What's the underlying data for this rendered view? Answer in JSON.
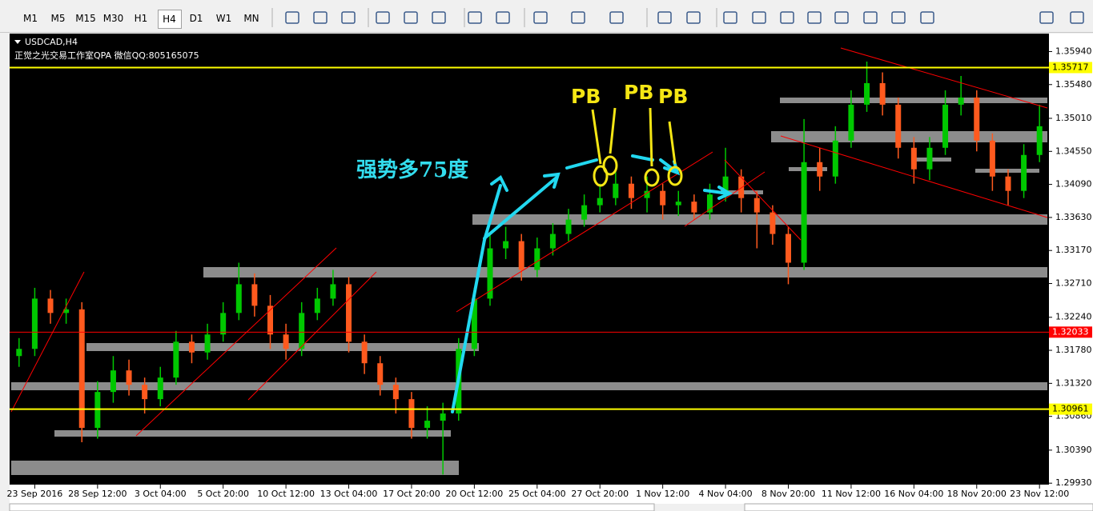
{
  "toolbar": {
    "timeframes": [
      "M1",
      "M5",
      "M15",
      "M30",
      "H1",
      "H4",
      "D1",
      "W1",
      "MN"
    ]
  },
  "chart_data": {
    "type": "candlestick",
    "title": "USDCAD,H4",
    "subtitle": "正觉之光交易工作室QPA 微信QQ:805165075",
    "annotations": [
      "强势多75度",
      "PB",
      "PB",
      "PB"
    ],
    "categories": [
      null,
      "23 Sep 2016",
      null,
      null,
      null,
      "28 Sep 12:00",
      null,
      null,
      null,
      "3 Oct 04:00",
      null,
      null,
      null,
      "5 Oct 20:00",
      null,
      null,
      null,
      "10 Oct 12:00",
      null,
      null,
      null,
      "13 Oct 04:00",
      null,
      null,
      null,
      "17 Oct 20:00",
      null,
      null,
      null,
      "20 Oct 12:00",
      null,
      null,
      null,
      "25 Oct 04:00",
      null,
      null,
      null,
      "27 Oct 20:00",
      null,
      null,
      null,
      "1 Nov 12:00",
      null,
      null,
      null,
      "4 Nov 04:00",
      null,
      null,
      null,
      "8 Nov 20:00",
      null,
      null,
      null,
      "11 Nov 12:00",
      null,
      null,
      null,
      "16 Nov 04:00",
      null,
      null,
      null,
      "18 Nov 20:00",
      null,
      null,
      null,
      "23 Nov 12:00"
    ],
    "open": [
      1.317,
      1.318,
      1.325,
      1.323,
      1.3235,
      1.307,
      1.312,
      1.315,
      1.313,
      1.311,
      1.314,
      1.319,
      1.3175,
      1.32,
      1.323,
      1.327,
      1.324,
      1.32,
      1.318,
      1.323,
      1.325,
      1.327,
      1.319,
      1.316,
      1.313,
      1.311,
      1.307,
      1.308,
      1.309,
      1.318,
      1.325,
      1.332,
      1.333,
      1.329,
      1.332,
      1.334,
      1.336,
      1.338,
      1.339,
      1.341,
      1.339,
      1.34,
      1.338,
      1.3385,
      1.337,
      1.3395,
      1.342,
      1.339,
      1.337,
      1.334,
      1.33,
      1.344,
      1.342,
      1.347,
      1.352,
      1.355,
      1.352,
      1.346,
      1.343,
      1.346,
      1.352,
      1.353,
      1.347,
      1.342,
      1.34,
      1.345
    ],
    "high": [
      1.3195,
      1.3265,
      1.3262,
      1.325,
      1.3245,
      1.3135,
      1.317,
      1.3165,
      1.314,
      1.3155,
      1.3205,
      1.32,
      1.3215,
      1.3245,
      1.33,
      1.3285,
      1.3255,
      1.3215,
      1.3245,
      1.3265,
      1.329,
      1.328,
      1.32,
      1.317,
      1.314,
      1.312,
      1.31,
      1.3105,
      1.3195,
      1.3265,
      1.334,
      1.335,
      1.334,
      1.3335,
      1.3355,
      1.3375,
      1.3395,
      1.341,
      1.343,
      1.342,
      1.342,
      1.341,
      1.34,
      1.3395,
      1.341,
      1.346,
      1.343,
      1.34,
      1.338,
      1.335,
      1.35,
      1.346,
      1.349,
      1.354,
      1.358,
      1.3565,
      1.353,
      1.3475,
      1.3475,
      1.354,
      1.356,
      1.354,
      1.348,
      1.343,
      1.3465,
      1.352
    ],
    "low": [
      1.3155,
      1.317,
      1.3215,
      1.3215,
      1.305,
      1.3055,
      1.3105,
      1.3115,
      1.309,
      1.31,
      1.313,
      1.316,
      1.3165,
      1.319,
      1.322,
      1.3225,
      1.318,
      1.3165,
      1.317,
      1.322,
      1.324,
      1.3175,
      1.3145,
      1.3115,
      1.309,
      1.3055,
      1.3055,
      1.3005,
      1.308,
      1.317,
      1.324,
      1.3305,
      1.3275,
      1.328,
      1.331,
      1.333,
      1.335,
      1.337,
      1.338,
      1.3375,
      1.337,
      1.336,
      1.3365,
      1.336,
      1.336,
      1.3385,
      1.337,
      1.332,
      1.3325,
      1.327,
      1.329,
      1.34,
      1.341,
      1.346,
      1.351,
      1.3505,
      1.3445,
      1.341,
      1.3415,
      1.345,
      1.3505,
      1.3455,
      1.34,
      1.338,
      1.339,
      1.344
    ],
    "close": [
      1.318,
      1.325,
      1.323,
      1.3235,
      1.307,
      1.312,
      1.315,
      1.313,
      1.311,
      1.314,
      1.319,
      1.3175,
      1.32,
      1.323,
      1.327,
      1.324,
      1.32,
      1.318,
      1.323,
      1.325,
      1.327,
      1.319,
      1.316,
      1.313,
      1.311,
      1.307,
      1.308,
      1.309,
      1.318,
      1.325,
      1.332,
      1.333,
      1.329,
      1.332,
      1.334,
      1.336,
      1.338,
      1.339,
      1.341,
      1.339,
      1.34,
      1.338,
      1.3385,
      1.337,
      1.3395,
      1.342,
      1.339,
      1.337,
      1.334,
      1.33,
      1.344,
      1.342,
      1.347,
      1.352,
      1.355,
      1.352,
      1.346,
      1.343,
      1.346,
      1.352,
      1.353,
      1.347,
      1.342,
      1.34,
      1.345,
      1.349
    ],
    "up_color": "#00c800",
    "down_color": "#ff5a1e",
    "ylim": [
      1.2991,
      1.3619
    ],
    "yticks": [
      {
        "value": 1.3594,
        "label": "1.35940"
      },
      {
        "value": 1.3548,
        "label": "1.35480"
      },
      {
        "value": 1.3501,
        "label": "1.35010"
      },
      {
        "value": 1.3455,
        "label": "1.34550"
      },
      {
        "value": 1.3409,
        "label": "1.34090"
      },
      {
        "value": 1.3363,
        "label": "1.33630"
      },
      {
        "value": 1.3317,
        "label": "1.33170"
      },
      {
        "value": 1.3271,
        "label": "1.32710"
      },
      {
        "value": 1.3224,
        "label": "1.32240"
      },
      {
        "value": 1.3178,
        "label": "1.31780"
      },
      {
        "value": 1.3132,
        "label": "1.31320"
      },
      {
        "value": 1.3086,
        "label": "1.30860"
      },
      {
        "value": 1.3039,
        "label": "1.30390"
      },
      {
        "value": 1.2993,
        "label": "1.29930"
      }
    ],
    "hlines": [
      {
        "value": 1.35717,
        "color": "#ffff00"
      },
      {
        "value": 1.32033,
        "color": "#ff0000"
      },
      {
        "value": 1.30961,
        "color": "#ffff00"
      }
    ]
  }
}
